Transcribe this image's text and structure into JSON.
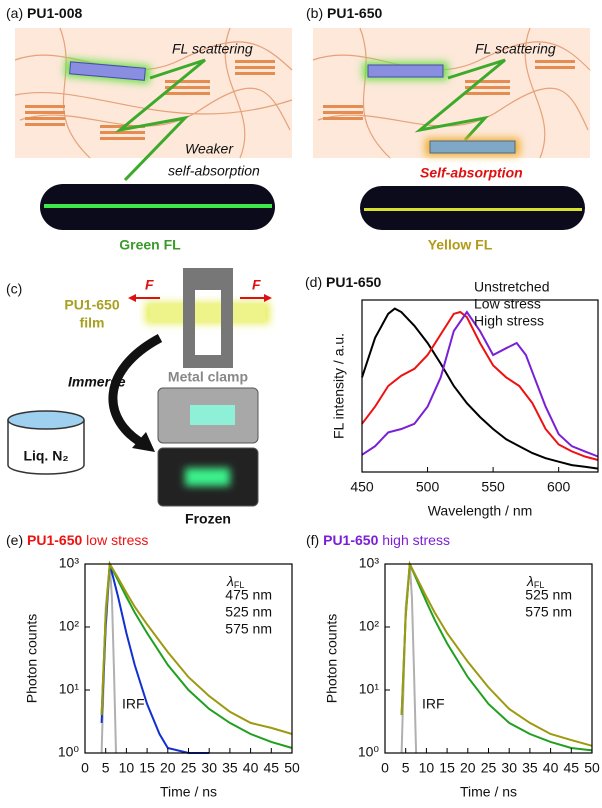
{
  "illustrations": {
    "a": {
      "panel": "(a)",
      "title": "PU1-008",
      "scatter": "FL scattering",
      "note": [
        "Weaker",
        "self-absorption"
      ],
      "result": "Green FL"
    },
    "b": {
      "panel": "(b)",
      "title": "PU1-650",
      "scatter": "FL scattering",
      "note": "Self-absorption",
      "result": "Yellow FL"
    },
    "c": {
      "panel": "(c)",
      "film": [
        "PU1-650",
        "film"
      ],
      "force": [
        "F",
        "F"
      ],
      "clamp": "Metal clamp",
      "immerse": "Immerse",
      "liquid": "Liq. N₂",
      "frozen": "Frozen"
    }
  },
  "chart_data": [
    {
      "type": "line",
      "panel": "(d)",
      "title": "PU1-650",
      "xlabel": "Wavelength / nm",
      "ylabel": "FL intensity / a.u.",
      "xlim": [
        450,
        630
      ],
      "xticks": [
        450,
        500,
        550,
        600
      ],
      "ylim": [
        0,
        1
      ],
      "series": [
        {
          "name": "Unstretched",
          "color": "#000000",
          "x": [
            450,
            460,
            470,
            475,
            480,
            490,
            500,
            510,
            520,
            530,
            540,
            550,
            560,
            570,
            580,
            590,
            600,
            610,
            620,
            630
          ],
          "values": [
            0.55,
            0.78,
            0.92,
            0.95,
            0.93,
            0.85,
            0.75,
            0.63,
            0.5,
            0.4,
            0.32,
            0.25,
            0.19,
            0.15,
            0.11,
            0.08,
            0.06,
            0.04,
            0.03,
            0.02
          ]
        },
        {
          "name": "Low stress",
          "color": "#ee1111",
          "x": [
            450,
            460,
            470,
            480,
            490,
            500,
            510,
            520,
            525,
            530,
            540,
            550,
            560,
            570,
            580,
            590,
            600,
            610,
            620,
            630
          ],
          "values": [
            0.28,
            0.38,
            0.5,
            0.56,
            0.6,
            0.68,
            0.8,
            0.92,
            0.93,
            0.9,
            0.75,
            0.62,
            0.55,
            0.5,
            0.4,
            0.25,
            0.16,
            0.12,
            0.09,
            0.07
          ]
        },
        {
          "name": "High stress",
          "color": "#7a1fd6",
          "x": [
            450,
            460,
            470,
            480,
            490,
            500,
            510,
            520,
            530,
            540,
            550,
            560,
            568,
            575,
            580,
            590,
            600,
            610,
            620,
            630
          ],
          "values": [
            0.1,
            0.15,
            0.23,
            0.25,
            0.28,
            0.38,
            0.55,
            0.82,
            0.93,
            0.82,
            0.68,
            0.72,
            0.75,
            0.68,
            0.58,
            0.38,
            0.22,
            0.15,
            0.12,
            0.09
          ]
        }
      ]
    },
    {
      "type": "line",
      "log_y": true,
      "panel": "(e)",
      "title": "PU1-650",
      "title_color": "#ee1111",
      "subtitle": "low stress",
      "xlabel": "Time / ns",
      "ylabel": "Photon counts",
      "legend_title": {
        "symbol": "λ",
        "subscript": "FL"
      },
      "xlim": [
        0,
        50
      ],
      "xticks": [
        0,
        5,
        10,
        15,
        20,
        25,
        30,
        35,
        40,
        45,
        50
      ],
      "ylim": [
        1,
        1000
      ],
      "yticks": [
        {
          "value": 1,
          "label": "10⁰"
        },
        {
          "value": 10,
          "label": "10¹"
        },
        {
          "value": 100,
          "label": "10²"
        },
        {
          "value": 1000,
          "label": "10³"
        }
      ],
      "annotation": "IRF",
      "series": [
        {
          "name": "IRF",
          "color": "#b0b0b0",
          "legend": false,
          "x": [
            4,
            5,
            6,
            6.5,
            7,
            7.5
          ],
          "values": [
            1,
            200,
            1000,
            300,
            20,
            1
          ]
        },
        {
          "name": "475 nm",
          "color": "#1030d0",
          "x": [
            4,
            5,
            6,
            8,
            10,
            12,
            15,
            18,
            20,
            25,
            30
          ],
          "values": [
            3,
            100,
            1000,
            300,
            80,
            25,
            6,
            2,
            1.2,
            1,
            1
          ]
        },
        {
          "name": "525 nm",
          "color": "#20a020",
          "x": [
            4,
            5,
            6,
            8,
            10,
            12,
            15,
            20,
            25,
            30,
            35,
            40,
            45,
            50
          ],
          "values": [
            4,
            150,
            1000,
            550,
            300,
            170,
            80,
            25,
            10,
            5,
            3,
            2,
            1.5,
            1.2
          ]
        },
        {
          "name": "575 nm",
          "color": "#9c9a10",
          "x": [
            4,
            5,
            6,
            8,
            10,
            12,
            15,
            20,
            25,
            30,
            35,
            40,
            45,
            50
          ],
          "values": [
            4,
            150,
            1000,
            600,
            350,
            210,
            110,
            40,
            16,
            8,
            4.5,
            3,
            2.5,
            2
          ]
        }
      ]
    },
    {
      "type": "line",
      "log_y": true,
      "panel": "(f)",
      "title": "PU1-650",
      "title_color": "#7a1fd6",
      "subtitle": "high stress",
      "xlabel": "Time / ns",
      "ylabel": "Photon counts",
      "legend_title": {
        "symbol": "λ",
        "subscript": "FL"
      },
      "xlim": [
        0,
        50
      ],
      "xticks": [
        0,
        5,
        10,
        15,
        20,
        25,
        30,
        35,
        40,
        45,
        50
      ],
      "ylim": [
        1,
        1000
      ],
      "yticks": [
        {
          "value": 1,
          "label": "10⁰"
        },
        {
          "value": 10,
          "label": "10¹"
        },
        {
          "value": 100,
          "label": "10²"
        },
        {
          "value": 1000,
          "label": "10³"
        }
      ],
      "annotation": "IRF",
      "series": [
        {
          "name": "IRF",
          "color": "#b0b0b0",
          "legend": false,
          "x": [
            4,
            5,
            6,
            6.5,
            7,
            7.5
          ],
          "values": [
            1,
            200,
            1000,
            300,
            20,
            1
          ]
        },
        {
          "name": "525 nm",
          "color": "#20a020",
          "x": [
            4,
            5,
            6,
            8,
            10,
            12,
            15,
            20,
            25,
            30,
            35,
            40,
            45,
            50
          ],
          "values": [
            4,
            150,
            1000,
            500,
            250,
            130,
            55,
            16,
            6,
            3,
            2,
            1.5,
            1.2,
            1.1
          ]
        },
        {
          "name": "575 nm",
          "color": "#9c9a10",
          "x": [
            4,
            5,
            6,
            8,
            10,
            12,
            15,
            20,
            25,
            30,
            35,
            40,
            45,
            50
          ],
          "values": [
            4,
            150,
            1000,
            550,
            300,
            170,
            80,
            28,
            11,
            5,
            3,
            2,
            1.6,
            1.3
          ]
        }
      ]
    }
  ]
}
